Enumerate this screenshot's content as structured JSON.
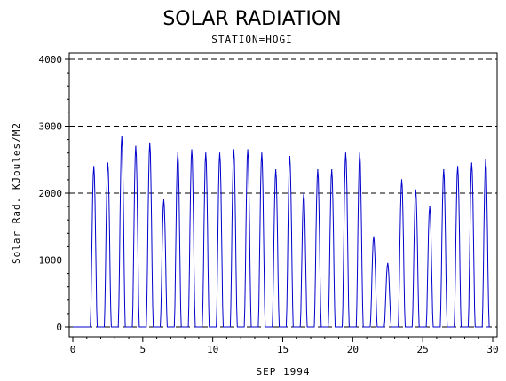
{
  "chart_data": {
    "type": "line",
    "title": "SOLAR RADIATION",
    "subtitle": "STATION=HOGI",
    "xlabel": "SEP 1994",
    "ylabel": "Solar Rad. KJoules/M2",
    "xlim": [
      0,
      30
    ],
    "ylim": [
      0,
      4000
    ],
    "xticks": [
      0,
      5,
      10,
      15,
      20,
      25,
      30
    ],
    "yticks": [
      0,
      1000,
      2000,
      3000,
      4000
    ],
    "grid": "horizontal dashed",
    "series": [
      {
        "color": "#0000cc",
        "daily_peaks": [
          {
            "day": 1,
            "peak": 2400
          },
          {
            "day": 2,
            "peak": 2450
          },
          {
            "day": 3,
            "peak": 2850
          },
          {
            "day": 4,
            "peak": 2700
          },
          {
            "day": 5,
            "peak": 2750
          },
          {
            "day": 6,
            "peak": 1900
          },
          {
            "day": 7,
            "peak": 2600
          },
          {
            "day": 8,
            "peak": 2650
          },
          {
            "day": 9,
            "peak": 2600
          },
          {
            "day": 10,
            "peak": 2600
          },
          {
            "day": 11,
            "peak": 2650
          },
          {
            "day": 12,
            "peak": 2650
          },
          {
            "day": 13,
            "peak": 2600
          },
          {
            "day": 14,
            "peak": 2350
          },
          {
            "day": 15,
            "peak": 2550
          },
          {
            "day": 16,
            "peak": 2000
          },
          {
            "day": 17,
            "peak": 2350
          },
          {
            "day": 18,
            "peak": 2350
          },
          {
            "day": 19,
            "peak": 2600
          },
          {
            "day": 20,
            "peak": 2600
          },
          {
            "day": 21,
            "peak": 1350
          },
          {
            "day": 22,
            "peak": 950
          },
          {
            "day": 23,
            "peak": 2200
          },
          {
            "day": 24,
            "peak": 2050
          },
          {
            "day": 25,
            "peak": 1800
          },
          {
            "day": 26,
            "peak": 2350
          },
          {
            "day": 27,
            "peak": 2400
          },
          {
            "day": 28,
            "peak": 2450
          },
          {
            "day": 29,
            "peak": 2500
          }
        ]
      }
    ]
  }
}
